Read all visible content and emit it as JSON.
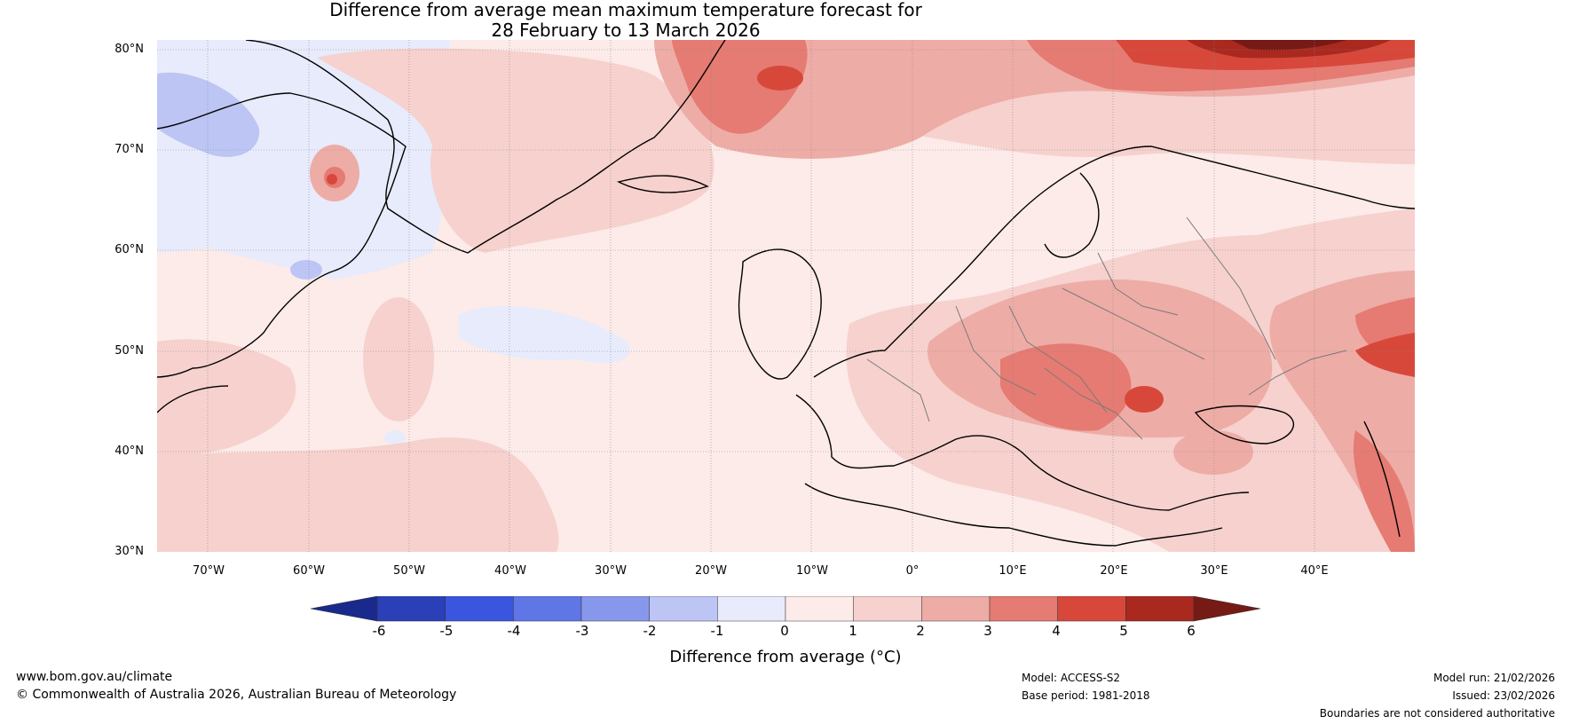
{
  "title": {
    "line1": "Difference from average mean maximum temperature forecast for",
    "line2": "28 February to 13 March 2026"
  },
  "lat_labels": [
    "80°N",
    "70°N",
    "60°N",
    "50°N",
    "40°N",
    "30°N"
  ],
  "lon_labels": [
    "70°W",
    "60°W",
    "50°W",
    "40°W",
    "30°W",
    "20°W",
    "10°W",
    "0°",
    "10°E",
    "20°E",
    "30°E",
    "40°E"
  ],
  "colorbar": {
    "label": "Difference from average (°C)",
    "ticks": [
      "-6",
      "-5",
      "-4",
      "-3",
      "-2",
      "-1",
      "0",
      "1",
      "2",
      "3",
      "4",
      "5",
      "6"
    ],
    "colors": [
      "#1a2a8c",
      "#2a3fb8",
      "#3a55de",
      "#5f76e6",
      "#8798ec",
      "#bcc5f4",
      "#e7ebfb",
      "#fcebe8",
      "#f6d1cd",
      "#eeaca6",
      "#e57b72",
      "#d7483b",
      "#a9291f",
      "#761a15"
    ]
  },
  "footer": {
    "website": "www.bom.gov.au/climate",
    "copyright": "© Commonwealth of Australia 2026, Australian Bureau of Meteorology",
    "model": "Model: ACCESS-S2",
    "base_period": "Base period: 1981-2018",
    "model_run": "Model run: 21/02/2026",
    "issued": "Issued: 23/02/2026",
    "disclaimer": "Boundaries are not considered authoritative"
  }
}
